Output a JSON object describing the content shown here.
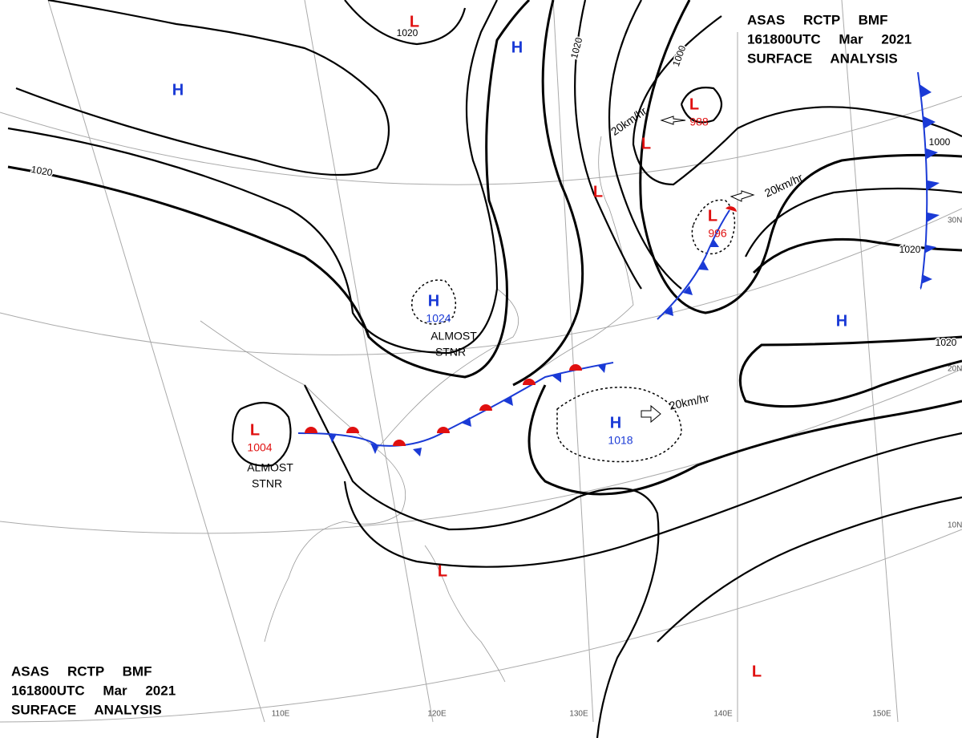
{
  "header": {
    "line1": "ASAS RCTP BMF",
    "line2": "161800UTC Mar 2021",
    "line3": "SURFACE ANALYSIS"
  },
  "systems": [
    {
      "symbol": "H"
    },
    {
      "symbol": "H"
    },
    {
      "symbol": "H",
      "pressure": "1024"
    },
    {
      "symbol": "H",
      "pressure": "1018"
    },
    {
      "symbol": "H"
    },
    {
      "symbol": "L"
    },
    {
      "symbol": "L",
      "pressure": "988"
    },
    {
      "symbol": "L"
    },
    {
      "symbol": "L"
    },
    {
      "symbol": "L",
      "pressure": "996"
    },
    {
      "symbol": "L",
      "pressure": "1004"
    },
    {
      "symbol": "L"
    },
    {
      "symbol": "L"
    }
  ],
  "isobar_labels": [
    "1020",
    "1020",
    "1020",
    "1020",
    "1000",
    "1000",
    "1020"
  ],
  "motion_labels": [
    "20km/hr",
    "20km/hr",
    "20km/hr"
  ],
  "notes": [
    {
      "lines": [
        "ALMOST",
        "STNR"
      ]
    },
    {
      "lines": [
        "ALMOST",
        "STNR"
      ]
    }
  ],
  "latitudes": [
    "30N",
    "20N",
    "10N"
  ],
  "longitudes": [
    "110E",
    "120E",
    "130E",
    "140E",
    "150E"
  ]
}
